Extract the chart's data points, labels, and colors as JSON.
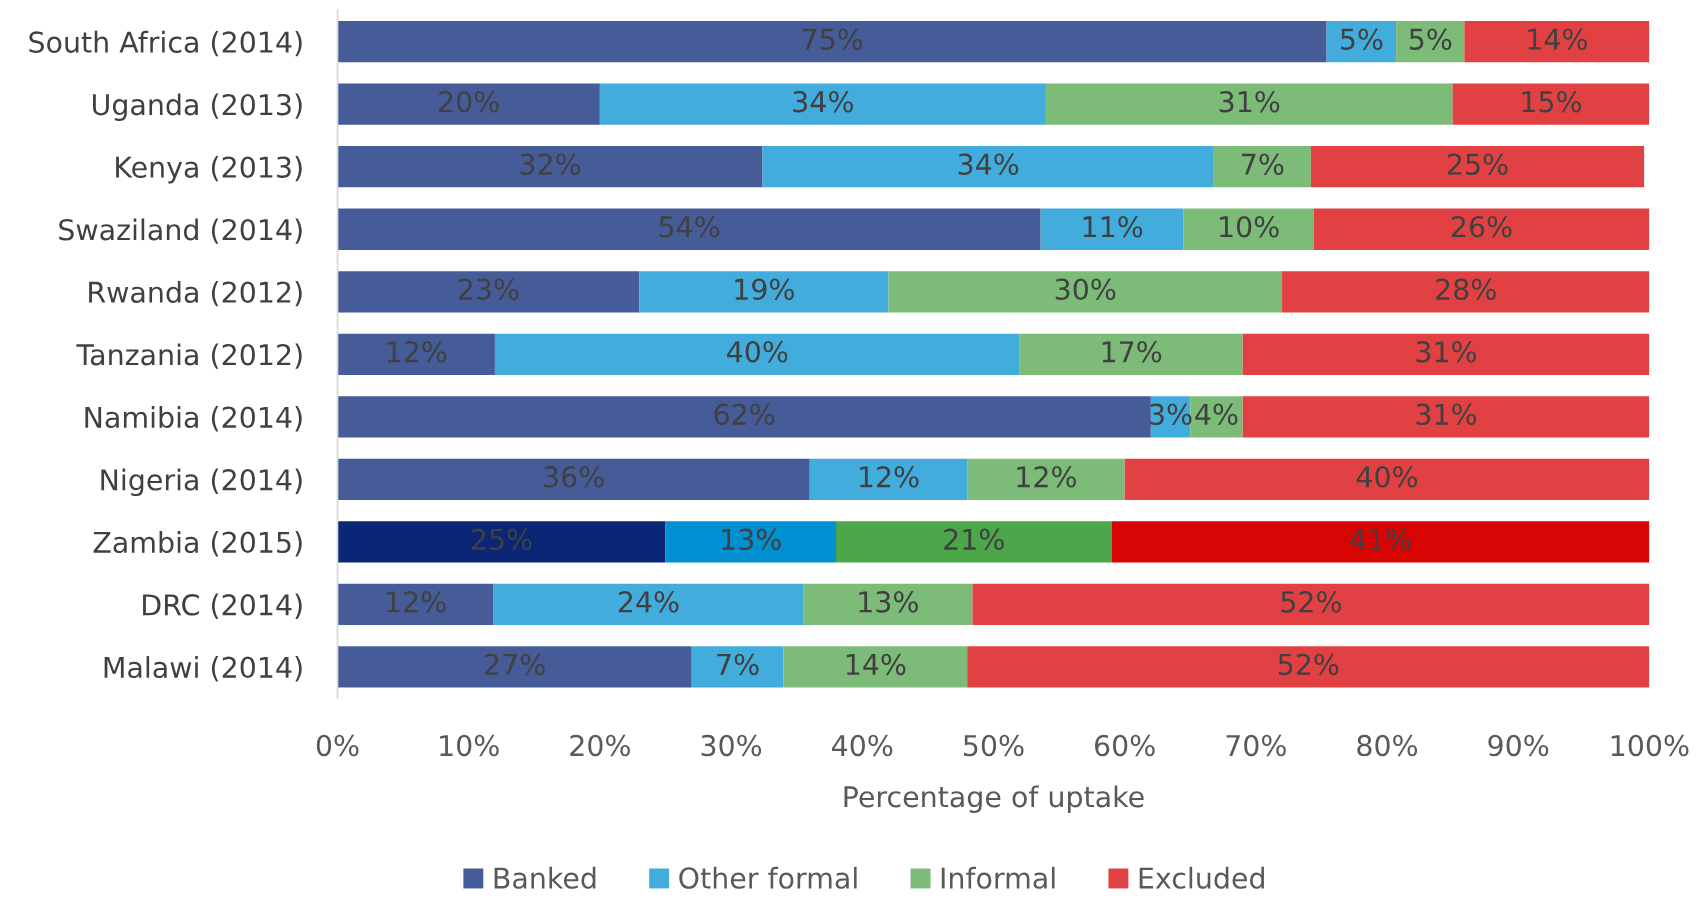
{
  "chart_data": {
    "type": "bar",
    "orientation": "horizontal",
    "stacked": true,
    "categories": [
      "South Africa (2014)",
      "Uganda (2013)",
      "Kenya (2013)",
      "Swaziland (2014)",
      "Rwanda (2012)",
      "Tanzania (2012)",
      "Namibia (2014)",
      "Nigeria (2014)",
      "Zambia (2015)",
      "DRC (2014)",
      "Malawi (2014)"
    ],
    "series": [
      {
        "name": "Banked",
        "color": "#465c99",
        "colors": [
          "#465c99",
          "#465c99",
          "#465c99",
          "#465c99",
          "#465c99",
          "#465c99",
          "#465c99",
          "#465c99",
          "#0a2675",
          "#465c99",
          "#465c99"
        ],
        "values": [
          75.4,
          20,
          32.4,
          53.6,
          23,
          12,
          62,
          36,
          25,
          11.9,
          27
        ],
        "value_labels": [
          "75%",
          "20%",
          "32%",
          "54%",
          "23%",
          "12%",
          "62%",
          "36%",
          "25%",
          "12%",
          "27%"
        ]
      },
      {
        "name": "Other formal",
        "color": "#42acdc",
        "colors": [
          "#42acdc",
          "#42acdc",
          "#42acdc",
          "#42acdc",
          "#42acdc",
          "#42acdc",
          "#42acdc",
          "#42acdc",
          "#008fd0",
          "#42acdc",
          "#42acdc"
        ],
        "values": [
          5.3,
          34,
          34.4,
          10.9,
          19,
          40,
          3,
          12,
          13,
          23.6,
          7
        ],
        "value_labels": [
          "5%",
          "34%",
          "34%",
          "11%",
          "19%",
          "40%",
          "3%",
          "12%",
          "13%",
          "24%",
          "7%"
        ]
      },
      {
        "name": "Informal",
        "color": "#7cbb78",
        "colors": [
          "#7cbb78",
          "#7cbb78",
          "#7cbb78",
          "#7cbb78",
          "#7cbb78",
          "#7cbb78",
          "#7cbb78",
          "#7cbb78",
          "#4ca64a",
          "#7cbb78",
          "#7cbb78"
        ],
        "values": [
          5.2,
          31,
          7.4,
          9.9,
          30,
          17,
          4,
          12,
          21,
          12.9,
          14
        ],
        "value_labels": [
          "5%",
          "31%",
          "7%",
          "10%",
          "30%",
          "17%",
          "4%",
          "12%",
          "21%",
          "13%",
          "14%"
        ]
      },
      {
        "name": "Excluded",
        "color": "#e24144",
        "colors": [
          "#e24144",
          "#e24144",
          "#e24144",
          "#e24144",
          "#e24144",
          "#e24144",
          "#e24144",
          "#e24144",
          "#d90404",
          "#e24144",
          "#e24144"
        ],
        "values": [
          14.1,
          15,
          25.4,
          25.6,
          28,
          31,
          31,
          40,
          41,
          51.6,
          52
        ],
        "value_labels": [
          "14%",
          "15%",
          "25%",
          "26%",
          "28%",
          "31%",
          "31%",
          "40%",
          "41%",
          "52%",
          "52%"
        ]
      }
    ],
    "xlim": [
      0,
      100
    ],
    "xticks": [
      {
        "value": 0,
        "label": "0%"
      },
      {
        "value": 10,
        "label": "10%"
      },
      {
        "value": 20,
        "label": "20%"
      },
      {
        "value": 30,
        "label": "30%"
      },
      {
        "value": 40,
        "label": "40%"
      },
      {
        "value": 50,
        "label": "50%"
      },
      {
        "value": 60,
        "label": "60%"
      },
      {
        "value": 70,
        "label": "70%"
      },
      {
        "value": 80,
        "label": "80%"
      },
      {
        "value": 90,
        "label": "90%"
      },
      {
        "value": 100,
        "label": "100%"
      }
    ],
    "xlabel": "Percentage of uptake",
    "grid": false,
    "legend": "bottom"
  }
}
